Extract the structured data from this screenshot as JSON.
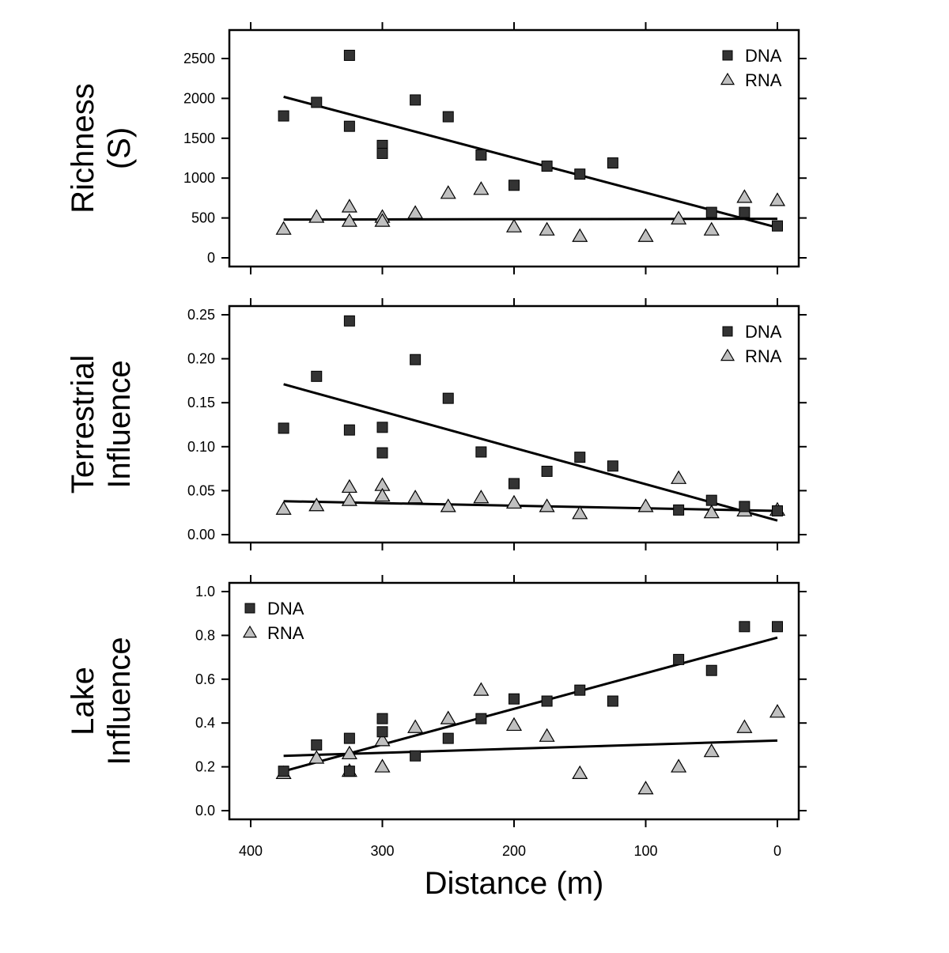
{
  "chart_data": [
    {
      "type": "scatter",
      "ylabel_lines": [
        "Richness",
        "(S)"
      ],
      "ylim": [
        0,
        2500
      ],
      "yticks": [
        0,
        500,
        1000,
        1500,
        2000,
        2500
      ],
      "ytick_labels": [
        "0",
        "500",
        "1000",
        "1500",
        "2000",
        "2500"
      ],
      "legend_position": "top-right",
      "series": [
        {
          "name": "DNA",
          "marker": "square",
          "color": "#333333",
          "points": [
            [
              375,
              1780
            ],
            [
              350,
              1950
            ],
            [
              325,
              2540
            ],
            [
              325,
              1650
            ],
            [
              300,
              1410
            ],
            [
              300,
              1310
            ],
            [
              275,
              1980
            ],
            [
              250,
              1770
            ],
            [
              225,
              1290
            ],
            [
              200,
              910
            ],
            [
              175,
              1150
            ],
            [
              150,
              1050
            ],
            [
              125,
              1190
            ],
            [
              50,
              570
            ],
            [
              25,
              570
            ],
            [
              0,
              400
            ]
          ],
          "fit": [
            [
              375,
              2020
            ],
            [
              0,
              380
            ]
          ]
        },
        {
          "name": "RNA",
          "marker": "triangle",
          "color": "#c0c0c0",
          "points": [
            [
              375,
              360
            ],
            [
              350,
              510
            ],
            [
              325,
              640
            ],
            [
              325,
              460
            ],
            [
              300,
              510
            ],
            [
              300,
              460
            ],
            [
              275,
              560
            ],
            [
              250,
              810
            ],
            [
              225,
              860
            ],
            [
              200,
              390
            ],
            [
              175,
              350
            ],
            [
              150,
              270
            ],
            [
              100,
              270
            ],
            [
              75,
              490
            ],
            [
              50,
              350
            ],
            [
              25,
              760
            ],
            [
              0,
              720
            ]
          ],
          "fit": [
            [
              375,
              480
            ],
            [
              0,
              490
            ]
          ]
        }
      ]
    },
    {
      "type": "scatter",
      "ylabel_lines": [
        "Terrestrial",
        "Influence"
      ],
      "ylim": [
        0,
        0.25
      ],
      "yticks": [
        0,
        0.05,
        0.1,
        0.15,
        0.2,
        0.25
      ],
      "ytick_labels": [
        "0.00",
        "0.05",
        "0.10",
        "0.15",
        "0.20",
        "0.25"
      ],
      "legend_position": "top-right",
      "series": [
        {
          "name": "DNA",
          "marker": "square",
          "color": "#333333",
          "points": [
            [
              375,
              0.121
            ],
            [
              350,
              0.18
            ],
            [
              325,
              0.243
            ],
            [
              325,
              0.119
            ],
            [
              300,
              0.122
            ],
            [
              300,
              0.093
            ],
            [
              275,
              0.199
            ],
            [
              250,
              0.155
            ],
            [
              225,
              0.094
            ],
            [
              200,
              0.058
            ],
            [
              175,
              0.072
            ],
            [
              150,
              0.088
            ],
            [
              125,
              0.078
            ],
            [
              75,
              0.028
            ],
            [
              50,
              0.039
            ],
            [
              25,
              0.032
            ],
            [
              0,
              0.027
            ]
          ],
          "fit": [
            [
              375,
              0.171
            ],
            [
              0,
              0.016
            ]
          ]
        },
        {
          "name": "RNA",
          "marker": "triangle",
          "color": "#c0c0c0",
          "points": [
            [
              375,
              0.029
            ],
            [
              350,
              0.033
            ],
            [
              325,
              0.054
            ],
            [
              325,
              0.039
            ],
            [
              300,
              0.056
            ],
            [
              300,
              0.044
            ],
            [
              275,
              0.042
            ],
            [
              250,
              0.032
            ],
            [
              225,
              0.042
            ],
            [
              200,
              0.036
            ],
            [
              175,
              0.032
            ],
            [
              150,
              0.024
            ],
            [
              100,
              0.032
            ],
            [
              75,
              0.064
            ],
            [
              50,
              0.025
            ],
            [
              25,
              0.027
            ],
            [
              0,
              0.028
            ]
          ],
          "fit": [
            [
              375,
              0.038
            ],
            [
              0,
              0.027
            ]
          ]
        }
      ]
    },
    {
      "type": "scatter",
      "ylabel_lines": [
        "Lake",
        "Influence"
      ],
      "xlabel": "Distance (m)",
      "ylim": [
        0,
        1.0
      ],
      "yticks": [
        0,
        0.2,
        0.4,
        0.6,
        0.8,
        1.0
      ],
      "ytick_labels": [
        "0.0",
        "0.2",
        "0.4",
        "0.6",
        "0.8",
        "1.0"
      ],
      "legend_position": "top-left",
      "series": [
        {
          "name": "DNA",
          "marker": "square",
          "color": "#333333",
          "points": [
            [
              375,
              0.18
            ],
            [
              350,
              0.3
            ],
            [
              325,
              0.33
            ],
            [
              325,
              0.18
            ],
            [
              300,
              0.42
            ],
            [
              300,
              0.36
            ],
            [
              275,
              0.25
            ],
            [
              250,
              0.33
            ],
            [
              225,
              0.42
            ],
            [
              200,
              0.51
            ],
            [
              175,
              0.5
            ],
            [
              150,
              0.55
            ],
            [
              125,
              0.5
            ],
            [
              75,
              0.69
            ],
            [
              50,
              0.64
            ],
            [
              25,
              0.84
            ],
            [
              0,
              0.84
            ]
          ],
          "fit": [
            [
              375,
              0.18
            ],
            [
              0,
              0.79
            ]
          ]
        },
        {
          "name": "RNA",
          "marker": "triangle",
          "color": "#c0c0c0",
          "points": [
            [
              375,
              0.17
            ],
            [
              350,
              0.24
            ],
            [
              325,
              0.26
            ],
            [
              325,
              0.18
            ],
            [
              300,
              0.32
            ],
            [
              300,
              0.2
            ],
            [
              275,
              0.38
            ],
            [
              250,
              0.42
            ],
            [
              225,
              0.55
            ],
            [
              200,
              0.39
            ],
            [
              175,
              0.34
            ],
            [
              150,
              0.17
            ],
            [
              100,
              0.1
            ],
            [
              75,
              0.2
            ],
            [
              50,
              0.27
            ],
            [
              25,
              0.38
            ],
            [
              0,
              0.45
            ]
          ],
          "fit": [
            [
              375,
              0.25
            ],
            [
              0,
              0.32
            ]
          ]
        }
      ]
    }
  ],
  "x_axis": {
    "xlim": [
      400,
      0
    ],
    "xticks": [
      400,
      300,
      200,
      100,
      0
    ],
    "xtick_labels": [
      "400",
      "300",
      "200",
      "100",
      "0"
    ],
    "reversed": true
  }
}
